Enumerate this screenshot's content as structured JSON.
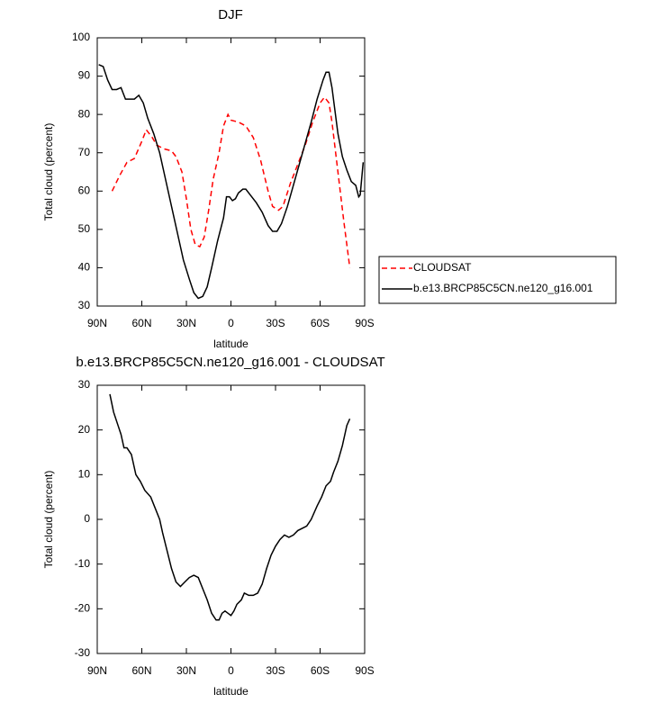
{
  "chart_data": [
    {
      "type": "line",
      "title": "DJF",
      "x_label": "latitude",
      "y_label": "Total cloud (percent)",
      "xlim": [
        90,
        -90
      ],
      "ylim": [
        30,
        100
      ],
      "xticks": [
        {
          "value": 90,
          "label": "90N"
        },
        {
          "value": 60,
          "label": "60N"
        },
        {
          "value": 30,
          "label": "30N"
        },
        0,
        {
          "value": -30,
          "label": "30S"
        },
        {
          "value": -60,
          "label": "60S"
        },
        {
          "value": -90,
          "label": "90S"
        }
      ],
      "yticks": [
        30,
        40,
        50,
        60,
        70,
        80,
        90,
        100
      ],
      "legend": "outside right",
      "series": [
        {
          "name": "CLOUDSAT",
          "color": "#ff0000",
          "dash": "dashed",
          "x": [
            80,
            75,
            70,
            65,
            60,
            57,
            53,
            50,
            45,
            40,
            37,
            33,
            30,
            27,
            24,
            21,
            18,
            15,
            12,
            8,
            5,
            2,
            0,
            -5,
            -10,
            -15,
            -20,
            -25,
            -28,
            -32,
            -35,
            -40,
            -45,
            -50,
            -55,
            -60,
            -63,
            -66,
            -68,
            -72,
            -76,
            -80
          ],
          "values": [
            60,
            64,
            67.5,
            68.5,
            73,
            76,
            74,
            72,
            71,
            70.5,
            69,
            65,
            58,
            50,
            46,
            45.5,
            48,
            55,
            63,
            70,
            77,
            80,
            78.5,
            78,
            77,
            74,
            68,
            60,
            56,
            55,
            56,
            62,
            67,
            72,
            78,
            83,
            84.5,
            83,
            78,
            65,
            52,
            40
          ]
        },
        {
          "name": "b.e13.BRCP85C5CN.ne120_g16.001",
          "color": "#000000",
          "dash": "solid",
          "x": [
            89,
            86,
            83,
            80,
            77,
            74,
            71,
            68,
            65,
            62,
            59,
            56,
            52,
            48,
            44,
            40,
            36,
            32,
            28,
            25,
            22,
            19,
            16,
            13,
            9,
            5,
            3,
            1,
            -1,
            -3,
            -5,
            -8,
            -10,
            -13,
            -17,
            -21,
            -25,
            -28,
            -31,
            -34,
            -38,
            -42,
            -46,
            -50,
            -54,
            -58,
            -62,
            -64,
            -66,
            -68,
            -70,
            -72,
            -75,
            -78,
            -81,
            -84,
            -86,
            -87,
            -89
          ],
          "values": [
            93,
            92.5,
            89,
            86.5,
            86.5,
            87,
            84,
            84,
            84,
            85,
            83,
            79,
            75,
            70,
            63,
            56,
            49,
            42,
            37,
            33.5,
            32,
            32.5,
            35,
            40,
            47,
            53,
            58.5,
            58.5,
            57.5,
            58,
            59.5,
            60.5,
            60.5,
            59,
            57,
            54.5,
            51,
            49.5,
            49.5,
            51.5,
            56,
            61.5,
            67,
            72.5,
            78,
            84,
            89,
            91,
            91,
            87,
            81,
            75,
            69,
            65.5,
            62.5,
            61.5,
            58.5,
            59,
            67.5
          ]
        }
      ]
    },
    {
      "type": "line",
      "title": "b.e13.BRCP85C5CN.ne120_g16.001 - CLOUDSAT",
      "x_label": "latitude",
      "y_label": "Total cloud (percent)",
      "xlim": [
        90,
        -90
      ],
      "ylim": [
        -30,
        30
      ],
      "xticks": [
        {
          "value": 90,
          "label": "90N"
        },
        {
          "value": 60,
          "label": "60N"
        },
        {
          "value": 30,
          "label": "30N"
        },
        0,
        {
          "value": -30,
          "label": "30S"
        },
        {
          "value": -60,
          "label": "60S"
        },
        {
          "value": -90,
          "label": "90S"
        }
      ],
      "yticks": [
        -30,
        -20,
        -10,
        0,
        10,
        20,
        30
      ],
      "series": [
        {
          "color": "#000000",
          "dash": "solid",
          "x": [
            81.5,
            79,
            76,
            74,
            72,
            70,
            67,
            64,
            61,
            58,
            54,
            51,
            48,
            46,
            43,
            40,
            37,
            34,
            31,
            28,
            25,
            22,
            19,
            16,
            13,
            10,
            8,
            6,
            4,
            2,
            0,
            -2,
            -4,
            -7,
            -9,
            -12,
            -15,
            -18,
            -21,
            -24,
            -27,
            -30,
            -33,
            -36,
            -39,
            -42,
            -45,
            -48,
            -51,
            -54,
            -58,
            -61,
            -64,
            -67,
            -69,
            -72,
            -75,
            -78,
            -80
          ],
          "values": [
            28,
            24,
            21,
            19,
            16,
            16,
            14.5,
            10,
            8.5,
            6.5,
            5,
            2.5,
            0,
            -3,
            -7,
            -11,
            -14,
            -15,
            -14,
            -13,
            -12.5,
            -13,
            -15.5,
            -18,
            -21,
            -22.5,
            -22.5,
            -21,
            -20.5,
            -21,
            -21.5,
            -20.5,
            -19,
            -18,
            -16.5,
            -17,
            -17,
            -16.5,
            -14.5,
            -11,
            -8,
            -6,
            -4.5,
            -3.5,
            -4,
            -3.5,
            -2.5,
            -2,
            -1.5,
            0,
            3,
            5,
            7.5,
            8.5,
            10.5,
            13,
            16.5,
            21,
            22.5
          ]
        }
      ]
    }
  ]
}
